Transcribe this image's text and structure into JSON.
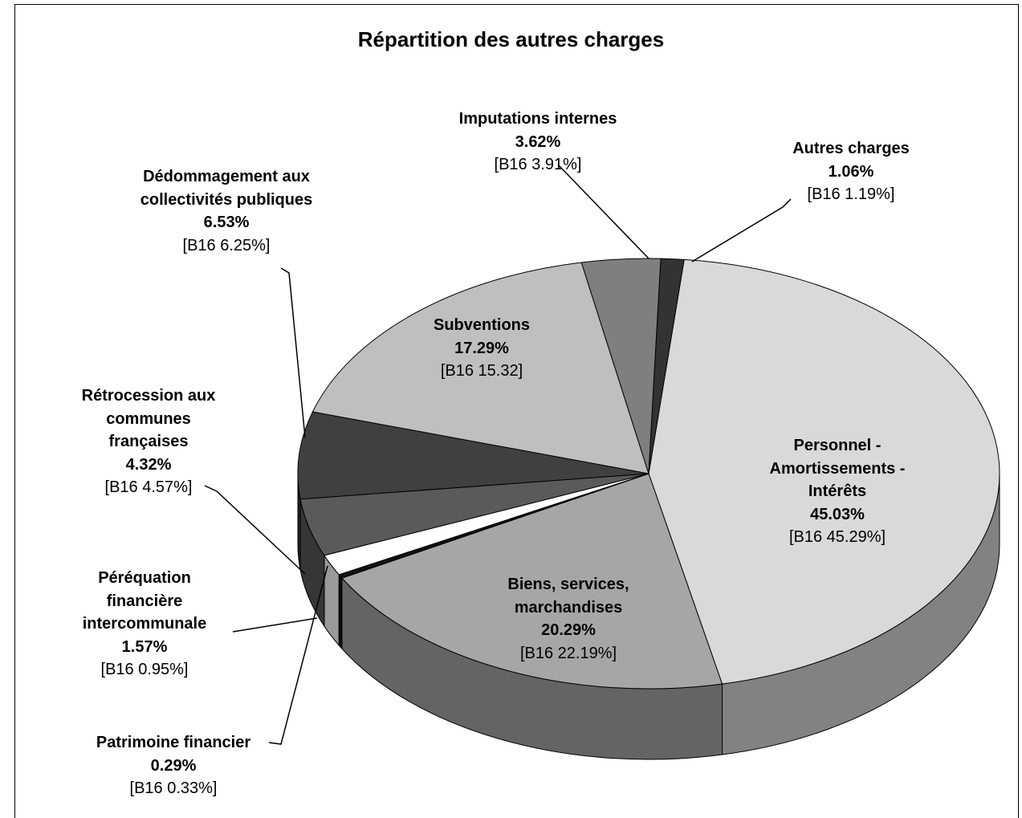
{
  "chart_data": {
    "type": "pie",
    "title": "Répartition des autres charges",
    "categories": [
      "Personnel - Amortissements - Intérêts",
      "Biens, services, marchandises",
      "Patrimoine financier",
      "Péréquation financière intercommunale",
      "Rétrocession aux communes françaises",
      "Dédommagement aux collectivités publiques",
      "Subventions",
      "Imputations internes",
      "Autres charges"
    ],
    "values": [
      45.03,
      20.29,
      0.29,
      1.57,
      4.32,
      6.53,
      17.29,
      3.62,
      1.06
    ],
    "value_labels": [
      "45.03%",
      "20.29%",
      "0.29%",
      "1.57%",
      "4.32%",
      "6.53%",
      "17.29%",
      "3.62%",
      "1.06%"
    ],
    "b16_labels": [
      "[B16 45.29%]",
      "[B16 22.19%]",
      "[B16 0.33%]",
      "[B16 0.95%]",
      "[B16 4.57%]",
      "[B16 6.25%]",
      "[B16 15.32]",
      "[B16 3.91%]",
      "[B16 1.19%]"
    ],
    "colors": [
      "#d9d9d9",
      "#a6a6a6",
      "#111111",
      "#ffffff",
      "#5a5a5a",
      "#404040",
      "#bfbfbf",
      "#7f7f7f",
      "#333333"
    ]
  }
}
